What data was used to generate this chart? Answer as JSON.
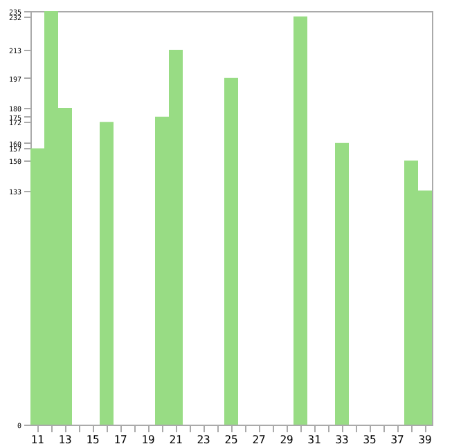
{
  "chart_data": {
    "type": "bar",
    "categories": [
      "11",
      null,
      "13",
      null,
      "15",
      null,
      "17",
      null,
      "19",
      null,
      "21",
      null,
      "23",
      null,
      "25",
      null,
      "27",
      null,
      "29",
      null,
      "31",
      null,
      "33",
      null,
      "35",
      null,
      "37",
      null,
      "39"
    ],
    "values": [
      157,
      235,
      180,
      0,
      0,
      172,
      0,
      0,
      0,
      175,
      213,
      0,
      0,
      0,
      197,
      0,
      0,
      0,
      0,
      232,
      0,
      0,
      160,
      0,
      0,
      0,
      0,
      150,
      133
    ],
    "color": "#98dc84",
    "ylim": [
      0,
      235
    ],
    "yticks": [
      0,
      133,
      150,
      157,
      160,
      172,
      175,
      180,
      197,
      213,
      232,
      235
    ],
    "grid": false
  }
}
